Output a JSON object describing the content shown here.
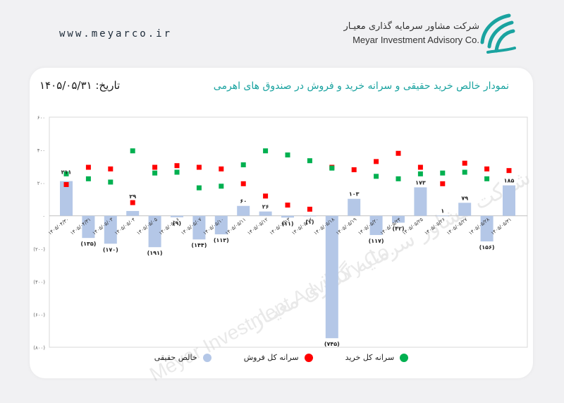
{
  "header": {
    "site_url": "www.meyarco.ir",
    "brand_fa": "شرکت مشاور سرمایه گذاری معیـار",
    "brand_en": "Meyar Investment Advisory Co."
  },
  "watermark": {
    "text_fa": "شرکت مشاور سرمایه گذاری معیـار",
    "text_en": "Meyar Investment Advisory Co."
  },
  "colors": {
    "net": "#b4c7e7",
    "sell": "#ff0000",
    "buy": "#00b050",
    "title": "#1aa3a0"
  },
  "chart_data": {
    "type": "bar",
    "title": "نمودار خالص خرید حقیقی و سرانه خرید و فروش در صندوق های اهرمی",
    "date_label": "تاریخ: ۱۴۰۵/۰۵/۳۱",
    "ylim": [
      -800,
      600
    ],
    "yticks": [
      600,
      400,
      200,
      0,
      -200,
      -400,
      -600,
      -800
    ],
    "ytick_labels": [
      "۶۰۰",
      "۴۰۰",
      "۲۰۰",
      "۰",
      "(۲۰۰)",
      "(۴۰۰)",
      "(۶۰۰)",
      "(۸۰۰)"
    ],
    "grid": false,
    "legend_position": "bottom",
    "categories": [
      "۱۴۰۵/۰۴/۳۰",
      "۱۴۰۵/۰۴/۳۱",
      "۱۴۰۵/۰۵/۰۳",
      "۱۴۰۵/۰۵/۰۴",
      "۱۴۰۵/۰۵/۰۵",
      "۱۴۰۵/۰۵/۰۶",
      "۱۴۰۵/۰۵/۰۷",
      "۱۴۰۵/۰۵/۱۰",
      "۱۴۰۵/۰۵/۱۱",
      "۱۴۰۵/۰۵/۱۲",
      "۱۴۰۵/۰۵/۱۳",
      "۱۴۰۵/۰۵/۱۷",
      "۱۴۰۵/۰۵/۱۸",
      "۱۴۰۵/۰۵/۱۹",
      "۱۴۰۵/۰۵/۲۰",
      "۱۴۰۵/۰۵/۲۴",
      "۱۴۰۵/۰۵/۲۵",
      "۱۴۰۵/۰۵/۲۶",
      "۱۴۰۵/۰۵/۲۷",
      "۱۴۰۵/۰۵/۲۸",
      "۱۴۰۵/۰۵/۳۱"
    ],
    "series": [
      {
        "name": "خالص حقیقی",
        "kind": "bar",
        "values": [
          211,
          -135,
          -170,
          29,
          -191,
          -9,
          -144,
          -113,
          60,
          26,
          -11,
          -1,
          -745,
          103,
          -117,
          -42,
          173,
          1,
          79,
          -156,
          185
        ],
        "labels": [
          "۲۱۱",
          "(۱۳۵)",
          "(۱۷۰)",
          "۲۹",
          "(۱۹۱)",
          "(۹)",
          "(۱۴۴)",
          "(۱۱۳)",
          "۶۰",
          "۲۶",
          "(۱۱)",
          "(۱)",
          "(۷۴۵)",
          "۱۰۳",
          "(۱۱۷)",
          "(۴۲)",
          "۱۷۳",
          "۱",
          "۷۹",
          "(۱۵۶)",
          "۱۸۵"
        ]
      },
      {
        "name": "سرانه کل فروش",
        "kind": "marker",
        "values": [
          190,
          295,
          285,
          80,
          295,
          305,
          295,
          285,
          195,
          120,
          65,
          40,
          295,
          280,
          330,
          380,
          295,
          195,
          320,
          285,
          275
        ]
      },
      {
        "name": "سرانه کل خرید",
        "kind": "marker",
        "values": [
          255,
          225,
          205,
          395,
          260,
          265,
          170,
          180,
          310,
          395,
          370,
          335,
          290,
          0,
          240,
          225,
          255,
          260,
          265,
          225,
          0
        ]
      }
    ],
    "legend": [
      {
        "key": "buy",
        "label": "سرانه کل خرید"
      },
      {
        "key": "sell",
        "label": "سرانه کل فروش"
      },
      {
        "key": "net",
        "label": "خالص حقیقی"
      }
    ]
  }
}
